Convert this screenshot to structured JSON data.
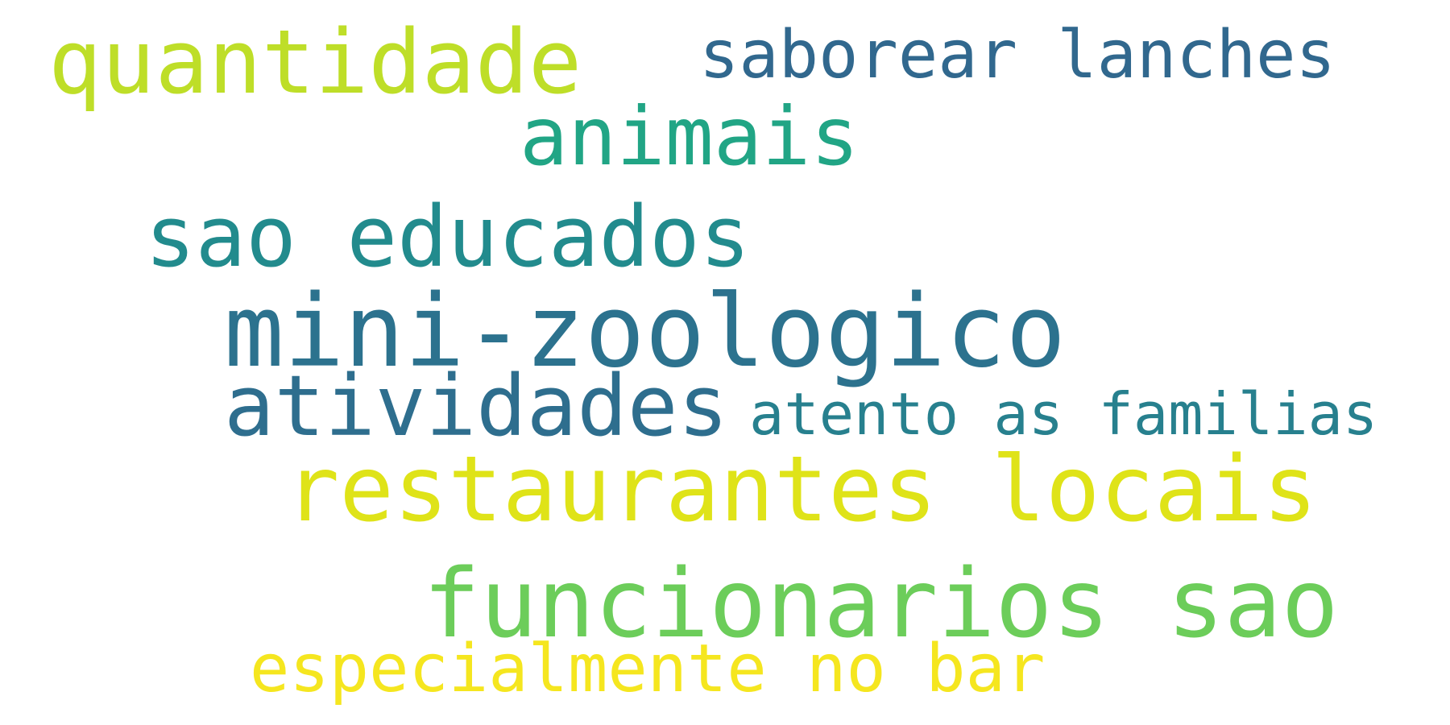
{
  "words": [
    {
      "text": "quantidade",
      "color": "#bede28"
    },
    {
      "text": "saborear lanches",
      "color": "#31688e"
    },
    {
      "text": "animais",
      "color": "#21a585"
    },
    {
      "text": "sao educados",
      "color": "#228b8d"
    },
    {
      "text": "mini-zoologico",
      "color": "#2c728e"
    },
    {
      "text": "atividades",
      "color": "#2e6e8e"
    },
    {
      "text": "atento as familias",
      "color": "#27808e"
    },
    {
      "text": "restaurantes locais",
      "color": "#dfe318"
    },
    {
      "text": "funcionarios sao",
      "color": "#6ccd5a"
    },
    {
      "text": "especialmente no bar",
      "color": "#f5e61f"
    }
  ]
}
